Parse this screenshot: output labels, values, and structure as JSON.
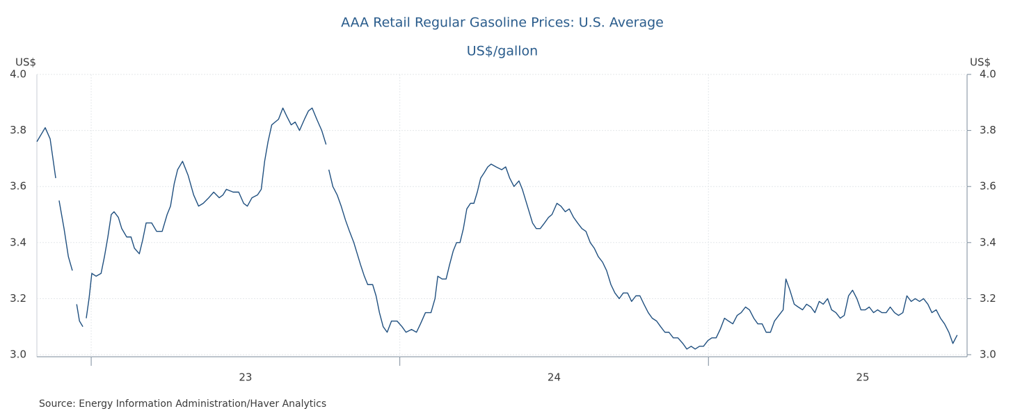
{
  "chart_data": {
    "type": "line",
    "title": "AAA Retail Regular Gasoline Prices: U.S. Average",
    "subtitle": "US$/gallon",
    "y_label": "US$",
    "y2_label": "US$",
    "source": "Source:  Energy Information Administration/Haver Analytics",
    "color": "#1f4f7f",
    "xlim": [
      2022.824,
      2025.82
    ],
    "xticks": [
      {
        "value": 2023.5,
        "label": "23"
      },
      {
        "value": 2024.5,
        "label": "24"
      },
      {
        "value": 2025.5,
        "label": "25"
      }
    ],
    "xminor_ticks": [
      2023,
      2024,
      2025
    ],
    "ylim": [
      3.0,
      4.0
    ],
    "yticks": [
      {
        "value": 3,
        "label": "3.0"
      },
      3.2,
      3.4,
      3.6,
      3.8,
      {
        "value": 4,
        "label": "4.0"
      }
    ],
    "y2lim": [
      3.0,
      4.0
    ],
    "y2ticks": [
      {
        "value": 3,
        "label": "3.0"
      },
      3.2,
      3.4,
      3.6,
      3.8,
      {
        "value": 4,
        "label": "4.0"
      }
    ],
    "grid": true,
    "x": [
      2022.824,
      2022.851,
      2022.867,
      2022.885,
      2022.89,
      2022.896,
      2022.912,
      2022.926,
      2022.939,
      2022.946,
      2022.953,
      2022.962,
      2022.973,
      2022.978,
      2022.984,
      2022.993,
      2023.002,
      2023.016,
      2023.032,
      2023.043,
      2023.054,
      2023.065,
      2023.074,
      2023.088,
      2023.099,
      2023.115,
      2023.129,
      2023.14,
      2023.156,
      2023.167,
      2023.178,
      2023.196,
      2023.212,
      2023.23,
      2023.246,
      2023.257,
      2023.269,
      2023.28,
      2023.296,
      2023.314,
      2023.332,
      2023.348,
      2023.363,
      2023.381,
      2023.397,
      2023.415,
      2023.427,
      2023.438,
      2023.46,
      2023.478,
      2023.494,
      2023.506,
      2023.521,
      2023.539,
      2023.551,
      2023.562,
      2023.573,
      2023.585,
      2023.596,
      2023.607,
      2023.621,
      2023.634,
      2023.648,
      2023.661,
      2023.675,
      2023.691,
      2023.704,
      2023.716,
      2023.731,
      2023.747,
      2023.761,
      2023.766,
      2023.77,
      2023.783,
      2023.797,
      2023.81,
      2023.824,
      2023.837,
      2023.851,
      2023.862,
      2023.873,
      2023.885,
      2023.896,
      2023.912,
      2023.923,
      2023.934,
      2023.946,
      2023.959,
      2023.973,
      2023.991,
      2024.007,
      2024.02,
      2024.038,
      2024.054,
      2024.067,
      2024.083,
      2024.101,
      2024.114,
      2024.123,
      2024.137,
      2024.15,
      2024.161,
      2024.173,
      2024.184,
      2024.195,
      2024.206,
      2024.217,
      2024.229,
      2024.24,
      2024.251,
      2024.262,
      2024.274,
      2024.285,
      2024.296,
      2024.312,
      2024.33,
      2024.343,
      2024.356,
      2024.37,
      2024.386,
      2024.397,
      2024.408,
      2024.419,
      2024.43,
      2024.442,
      2024.455,
      2024.469,
      2024.482,
      2024.493,
      2024.509,
      2024.522,
      2024.536,
      2024.549,
      2024.563,
      2024.576,
      2024.59,
      2024.603,
      2024.617,
      2024.63,
      2024.643,
      2024.657,
      2024.67,
      2024.684,
      2024.697,
      2024.711,
      2024.724,
      2024.738,
      2024.751,
      2024.765,
      2024.778,
      2024.791,
      2024.805,
      2024.818,
      2024.832,
      2024.845,
      2024.859,
      2024.872,
      2024.886,
      2024.901,
      2024.917,
      2024.93,
      2024.944,
      2024.957,
      2024.971,
      2024.984,
      2024.998,
      2025.011,
      2025.025,
      2025.038,
      2025.052,
      2025.065,
      2025.079,
      2025.093,
      2025.106,
      2025.12,
      2025.133,
      2025.147,
      2025.16,
      2025.174,
      2025.187,
      2025.201,
      2025.214,
      2025.228,
      2025.242,
      2025.251,
      2025.264,
      2025.278,
      2025.291,
      2025.305,
      2025.318,
      2025.332,
      2025.345,
      2025.359,
      2025.372,
      2025.386,
      2025.399,
      2025.413,
      2025.427,
      2025.44,
      2025.454,
      2025.467,
      2025.481,
      2025.494,
      2025.508,
      2025.521,
      2025.535,
      2025.548,
      2025.562,
      2025.576,
      2025.589,
      2025.603,
      2025.616,
      2025.63,
      2025.643,
      2025.657,
      2025.67,
      2025.684,
      2025.697,
      2025.711,
      2025.724,
      2025.738,
      2025.752,
      2025.765,
      2025.779,
      2025.792,
      2025.806
    ],
    "values": [
      3.76,
      3.81,
      3.77,
      3.63,
      null,
      3.55,
      3.45,
      3.35,
      3.3,
      null,
      3.18,
      3.12,
      3.1,
      null,
      3.13,
      3.2,
      3.29,
      3.28,
      3.29,
      3.35,
      3.42,
      3.5,
      3.51,
      3.49,
      3.45,
      3.42,
      3.42,
      3.38,
      3.36,
      3.41,
      3.47,
      3.47,
      3.44,
      3.44,
      3.5,
      3.53,
      3.61,
      3.66,
      3.69,
      3.64,
      3.57,
      3.53,
      3.54,
      3.56,
      3.58,
      3.56,
      3.57,
      3.59,
      3.58,
      3.58,
      3.54,
      3.53,
      3.56,
      3.57,
      3.59,
      3.69,
      3.76,
      3.82,
      3.83,
      3.84,
      3.88,
      3.85,
      3.82,
      3.83,
      3.8,
      3.84,
      3.87,
      3.88,
      3.84,
      3.8,
      3.75,
      null,
      3.66,
      3.6,
      3.57,
      3.53,
      3.48,
      3.44,
      3.4,
      3.36,
      3.32,
      3.28,
      3.25,
      3.25,
      3.21,
      3.15,
      3.1,
      3.08,
      3.12,
      3.12,
      3.1,
      3.08,
      3.09,
      3.08,
      3.11,
      3.15,
      3.15,
      3.2,
      3.28,
      3.27,
      3.27,
      3.32,
      3.37,
      3.4,
      3.4,
      3.45,
      3.52,
      3.54,
      3.54,
      3.58,
      3.63,
      3.65,
      3.67,
      3.68,
      3.67,
      3.66,
      3.67,
      3.63,
      3.6,
      3.62,
      3.59,
      3.55,
      3.51,
      3.47,
      3.45,
      3.45,
      3.47,
      3.49,
      3.5,
      3.54,
      3.53,
      3.51,
      3.52,
      3.49,
      3.47,
      3.45,
      3.44,
      3.4,
      3.38,
      3.35,
      3.33,
      3.3,
      3.25,
      3.22,
      3.2,
      3.22,
      3.22,
      3.19,
      3.21,
      3.21,
      3.18,
      3.15,
      3.13,
      3.12,
      3.1,
      3.08,
      3.08,
      3.06,
      3.06,
      3.04,
      3.02,
      3.03,
      3.02,
      3.03,
      3.03,
      3.05,
      3.06,
      3.06,
      3.09,
      3.13,
      3.12,
      3.11,
      3.14,
      3.15,
      3.17,
      3.16,
      3.13,
      3.11,
      3.11,
      3.08,
      3.08,
      3.12,
      3.14,
      3.16,
      3.27,
      3.23,
      3.18,
      3.17,
      3.16,
      3.18,
      3.17,
      3.15,
      3.19,
      3.18,
      3.2,
      3.16,
      3.15,
      3.13,
      3.14,
      3.21,
      3.23,
      3.2,
      3.16,
      3.16,
      3.17,
      3.15,
      3.16,
      3.15,
      3.15,
      3.17,
      3.15,
      3.14,
      3.15,
      3.21,
      3.19,
      3.2,
      3.19,
      3.2,
      3.18,
      3.15,
      3.16,
      3.13,
      3.11,
      3.08,
      3.04,
      3.07
    ]
  }
}
